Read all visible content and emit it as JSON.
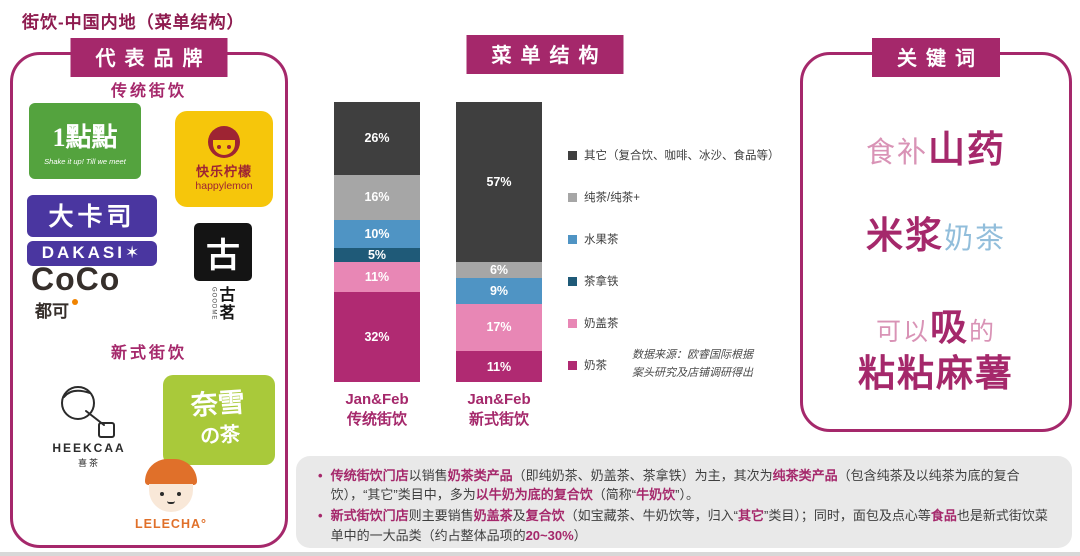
{
  "page_title": "街饮-中国内地（菜单结构）",
  "brands_panel": {
    "header": "代表品牌",
    "traditional_label": "传统街饮",
    "new_label": "新式街饮",
    "logos": {
      "yidiandian": {
        "name": "1點點",
        "tagline": "Shake it up! Till we meet"
      },
      "happylemon": {
        "cn": "快乐柠檬",
        "en": "happylemon"
      },
      "dakasi": {
        "cn": "大卡司",
        "en": "DAKASI✶"
      },
      "guming": {
        "symbol": "古",
        "vertical": [
          "古",
          "茗"
        ],
        "small": "GOODME"
      },
      "coco": {
        "en": "CoCo",
        "cn": "都可"
      },
      "heekcaa": {
        "en": "HEEKCAA",
        "cn": "喜茶"
      },
      "naixue": {
        "line1": "奈雪",
        "line2": "の茶"
      },
      "lelecha": {
        "en": "LELECHA°"
      }
    }
  },
  "menu_panel": {
    "header": "菜单结构",
    "chart_data": {
      "type": "bar",
      "stacked": true,
      "unit": "%",
      "ylim": [
        0,
        100
      ],
      "grid": false,
      "legend_position": "right",
      "categories": [
        [
          "Jan&Feb",
          "传统街饮"
        ],
        [
          "Jan&Feb",
          "新式街饮"
        ]
      ],
      "series": [
        {
          "name": "其它（复合饮、咖啡、冰沙、食品等）",
          "color": "#3f3f3f",
          "values": [
            26,
            57
          ]
        },
        {
          "name": "纯茶/纯茶+",
          "color": "#a6a6a6",
          "values": [
            16,
            6
          ]
        },
        {
          "name": "水果茶",
          "color": "#4f94c4",
          "values": [
            10,
            9
          ]
        },
        {
          "name": "茶拿铁",
          "color": "#1f5a78",
          "values": [
            5,
            0
          ]
        },
        {
          "name": "奶盖茶",
          "color": "#e887b5",
          "values": [
            11,
            17
          ]
        },
        {
          "name": "奶茶",
          "color": "#b02a72",
          "values": [
            32,
            11
          ]
        }
      ]
    },
    "source_line1": "数据来源：欧睿国际根据",
    "source_line2": "案头研究及店铺调研得出"
  },
  "keywords_panel": {
    "header": "关键词",
    "lines": [
      {
        "segments": [
          {
            "t": "食补",
            "cls": "pink md"
          },
          {
            "t": "山药",
            "cls": "magenta lg"
          }
        ]
      },
      {
        "segments": [
          {
            "t": "米浆",
            "cls": "magenta lg"
          },
          {
            "t": "奶茶",
            "cls": "blue md"
          }
        ]
      },
      {
        "segments": [
          {
            "t": "可以",
            "cls": "pink sm"
          },
          {
            "t": "吸",
            "cls": "magenta lg"
          },
          {
            "t": "的",
            "cls": "pink sm"
          }
        ]
      },
      {
        "segments": [
          {
            "t": "粘粘麻薯",
            "cls": "magenta lg"
          }
        ]
      }
    ]
  },
  "summary_panel": {
    "bullet_marker": "•",
    "bullets": [
      {
        "segments": [
          {
            "t": "传统街饮门店",
            "hl": true
          },
          {
            "t": "以销售",
            "hl": false
          },
          {
            "t": "奶茶类产品",
            "hl": true
          },
          {
            "t": "（即纯奶茶、奶盖茶、茶拿铁）为主，其次为",
            "hl": false
          },
          {
            "t": "纯茶类产品",
            "hl": true
          },
          {
            "t": "（包含纯茶及以纯茶为底的复合饮），“其它”类目中，多为",
            "hl": false
          },
          {
            "t": "以牛奶为底的复合饮",
            "hl": true
          },
          {
            "t": "（简称“",
            "hl": false
          },
          {
            "t": "牛奶饮",
            "hl": true
          },
          {
            "t": "”）。",
            "hl": false
          }
        ]
      },
      {
        "segments": [
          {
            "t": "新式街饮门店",
            "hl": true
          },
          {
            "t": "则主要销售",
            "hl": false
          },
          {
            "t": "奶盖茶",
            "hl": true
          },
          {
            "t": "及",
            "hl": false
          },
          {
            "t": "复合饮",
            "hl": true
          },
          {
            "t": "（如宝藏茶、牛奶饮等，归入“",
            "hl": false
          },
          {
            "t": "其它",
            "hl": true
          },
          {
            "t": "”类目）；同时，面包及点心等",
            "hl": false
          },
          {
            "t": "食品",
            "hl": true
          },
          {
            "t": "也是新式街饮菜单中的一大品类（约占整体品项的",
            "hl": false
          },
          {
            "t": "20~30%",
            "hl": true
          },
          {
            "t": "）",
            "hl": false
          }
        ]
      }
    ]
  }
}
